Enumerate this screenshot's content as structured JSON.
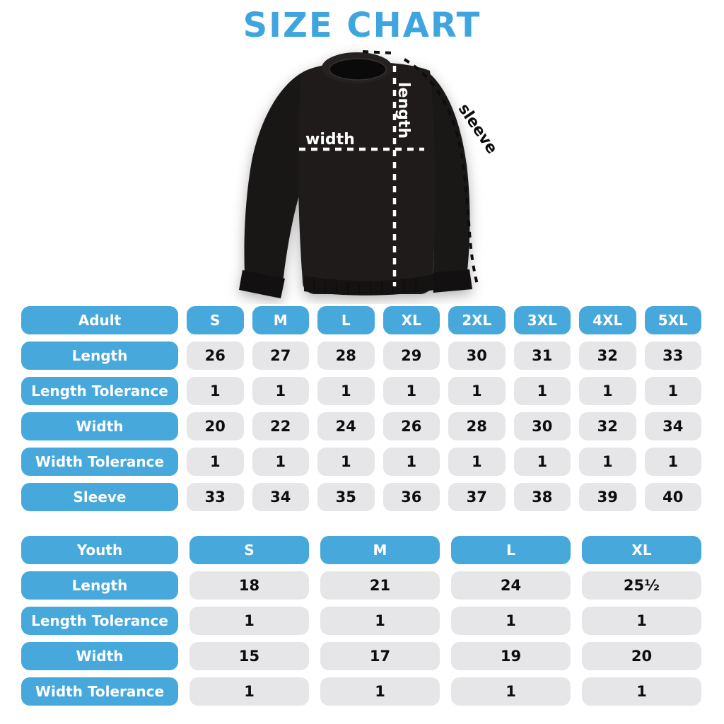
{
  "title": "SIZE CHART",
  "colors": {
    "accent_blue": "#47A8DC",
    "title_blue": "#3FA5DE",
    "cell_gray": "#E6E6E8",
    "shirt_black": "#1C1918",
    "value_text": "#0D0D0D"
  },
  "diagram": {
    "width_label": "width",
    "length_label": "length",
    "sleeve_label": "sleeve"
  },
  "chart_data": [
    {
      "type": "table",
      "header_label": "Adult",
      "sizes": [
        "S",
        "M",
        "L",
        "XL",
        "2XL",
        "3XL",
        "4XL",
        "5XL"
      ],
      "rows": [
        {
          "label": "Length",
          "values": [
            "26",
            "27",
            "28",
            "29",
            "30",
            "31",
            "32",
            "33"
          ]
        },
        {
          "label": "Length Tolerance",
          "values": [
            "1",
            "1",
            "1",
            "1",
            "1",
            "1",
            "1",
            "1"
          ]
        },
        {
          "label": "Width",
          "values": [
            "20",
            "22",
            "24",
            "26",
            "28",
            "30",
            "32",
            "34"
          ]
        },
        {
          "label": "Width Tolerance",
          "values": [
            "1",
            "1",
            "1",
            "1",
            "1",
            "1",
            "1",
            "1"
          ]
        },
        {
          "label": "Sleeve",
          "values": [
            "33",
            "34",
            "35",
            "36",
            "37",
            "38",
            "39",
            "40"
          ]
        }
      ]
    },
    {
      "type": "table",
      "header_label": "Youth",
      "sizes": [
        "S",
        "M",
        "L",
        "XL"
      ],
      "rows": [
        {
          "label": "Length",
          "values": [
            "18",
            "21",
            "24",
            "25¹⁄₂"
          ]
        },
        {
          "label": "Length Tolerance",
          "values": [
            "1",
            "1",
            "1",
            "1"
          ]
        },
        {
          "label": "Width",
          "values": [
            "15",
            "17",
            "19",
            "20"
          ]
        },
        {
          "label": "Width Tolerance",
          "values": [
            "1",
            "1",
            "1",
            "1"
          ]
        }
      ]
    }
  ]
}
